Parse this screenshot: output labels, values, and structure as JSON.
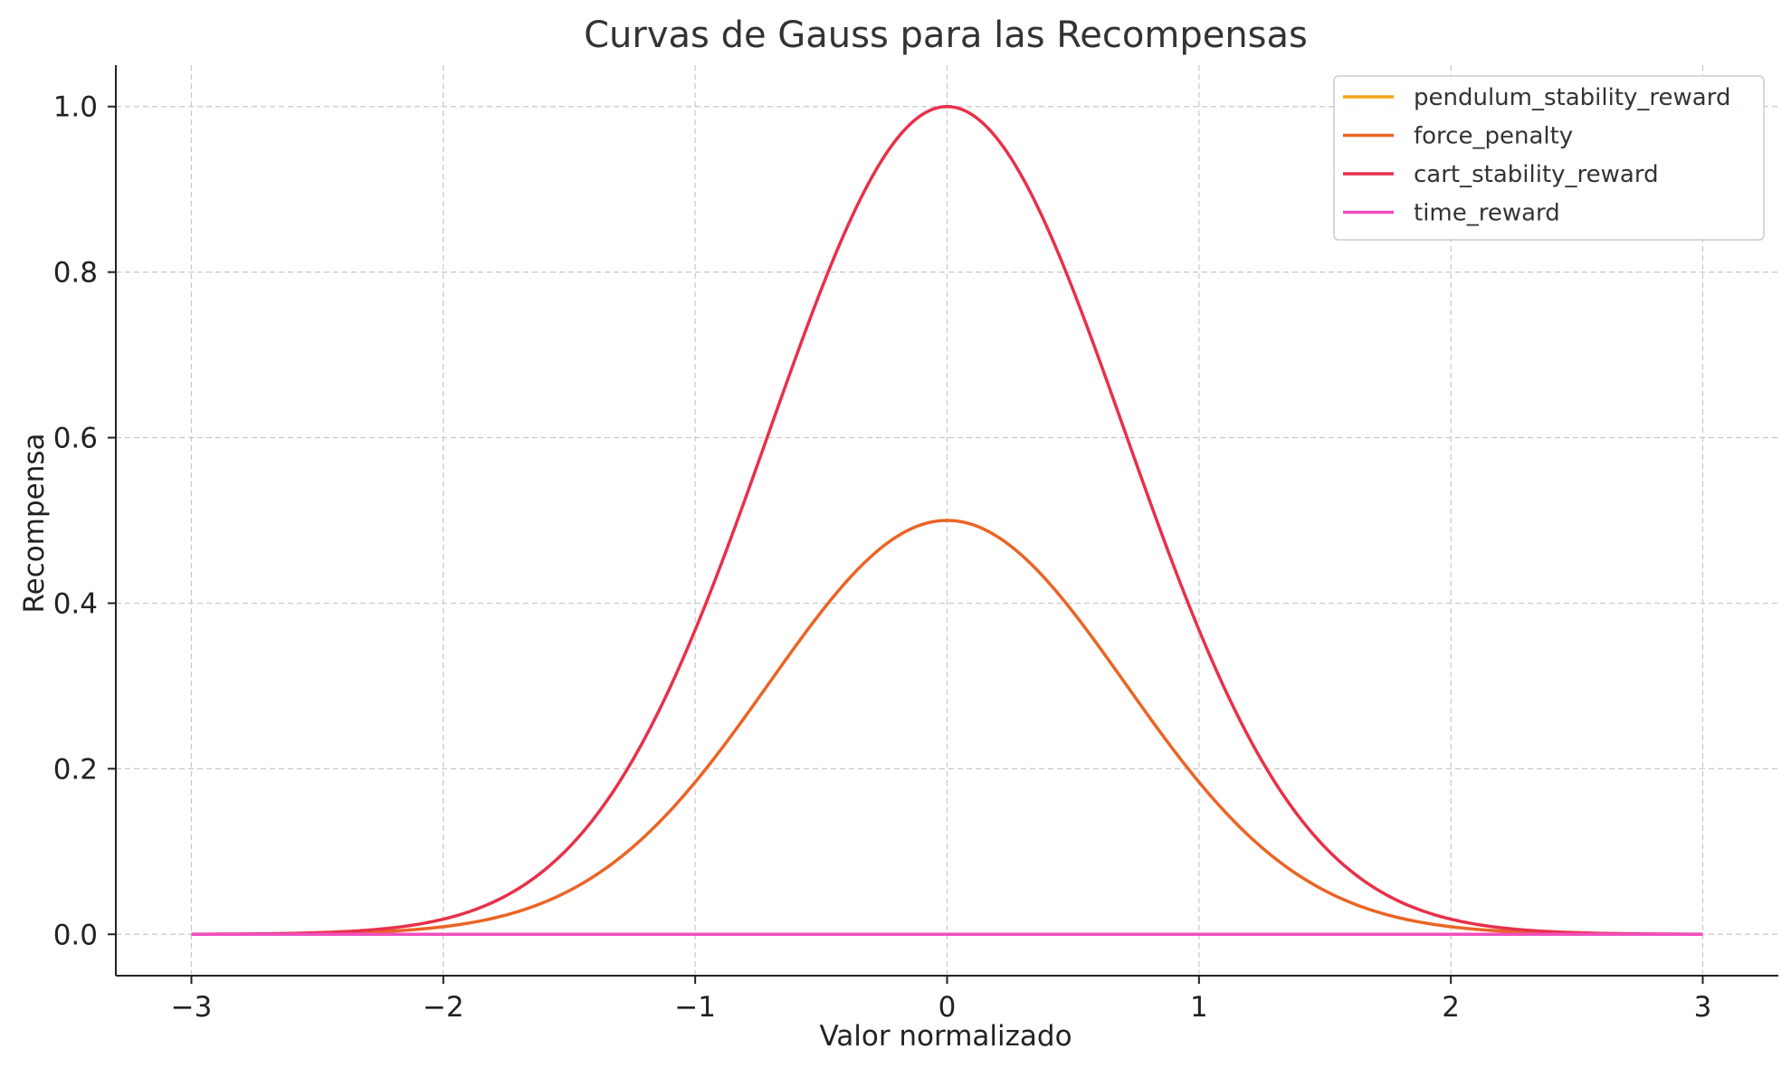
{
  "chart_data": {
    "type": "line",
    "title": "Curvas de Gauss para las Recompensas",
    "xlabel": "Valor normalizado",
    "ylabel": "Recompensa",
    "xlim": [
      -3.3,
      3.3
    ],
    "ylim": [
      -0.05,
      1.05
    ],
    "xticks": [
      -3,
      -2,
      -1,
      0,
      1,
      2,
      3
    ],
    "xtick_labels": [
      "−3",
      "−2",
      "−1",
      "0",
      "1",
      "2",
      "3"
    ],
    "yticks": [
      0.0,
      0.2,
      0.4,
      0.6,
      0.8,
      1.0
    ],
    "ytick_labels": [
      "0.0",
      "0.2",
      "0.4",
      "0.6",
      "0.8",
      "1.0"
    ],
    "grid": true,
    "legend_position": "top-right",
    "x_range": [
      -3,
      3
    ],
    "series": [
      {
        "name": "pendulum_stability_reward",
        "color": "#F2A516",
        "function": "gaussian",
        "amplitude": 0.0,
        "mean": 0,
        "sigma": 0.707
      },
      {
        "name": "force_penalty",
        "color": "#EB6424",
        "function": "gaussian",
        "amplitude": 0.5,
        "mean": 0,
        "sigma": 0.707
      },
      {
        "name": "cart_stability_reward",
        "color": "#E8304A",
        "function": "gaussian",
        "amplitude": 1.0,
        "mean": 0,
        "sigma": 0.707
      },
      {
        "name": "time_reward",
        "color": "#F04FBE",
        "function": "gaussian",
        "amplitude": 0.0,
        "mean": 0,
        "sigma": 0.707
      }
    ]
  }
}
